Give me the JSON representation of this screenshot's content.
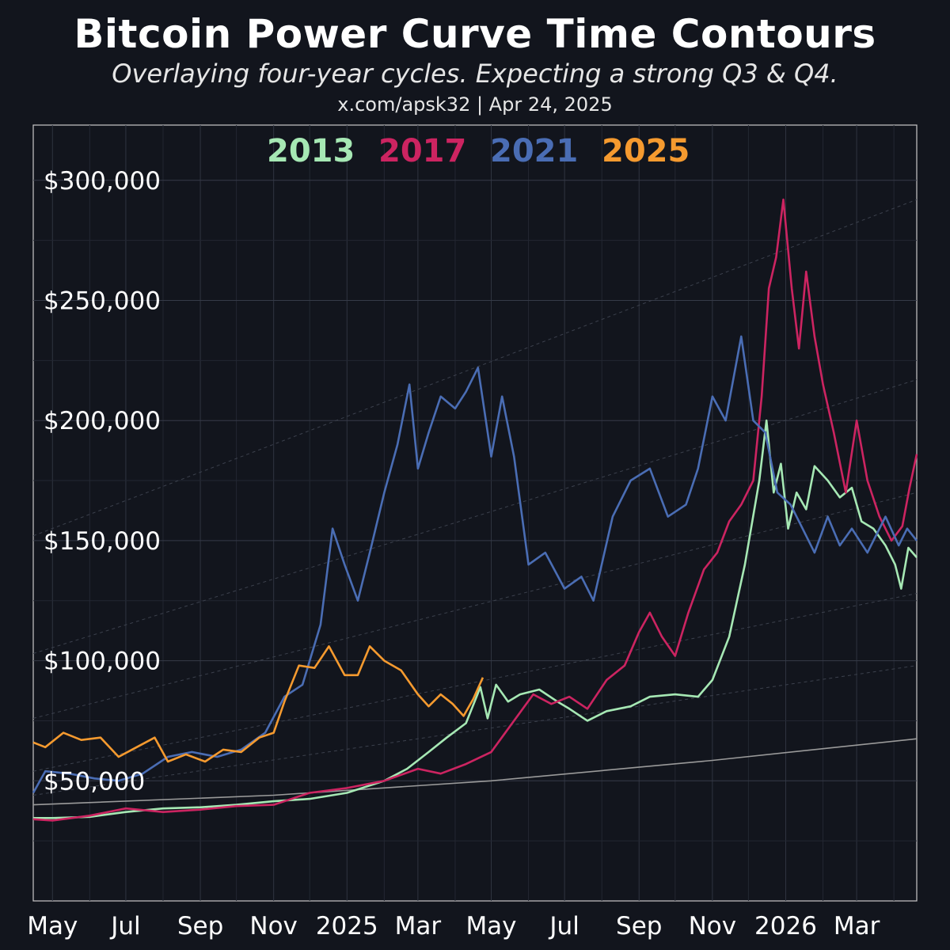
{
  "title": "Bitcoin Power Curve Time Contours",
  "subtitle": "Overlaying four-year cycles. Expecting a strong Q3 & Q4.",
  "credit": "x.com/apsk32 | Apr 24, 2025",
  "chart_data": {
    "type": "line",
    "x_ticks": [
      "May",
      "Jul",
      "Sep",
      "Nov",
      "2025",
      "Mar",
      "May",
      "Jul",
      "Sep",
      "Nov",
      "2026",
      "Mar"
    ],
    "y_ticks": [
      "$50,000",
      "$100,000",
      "$150,000",
      "$200,000",
      "$250,000",
      "$300,000"
    ],
    "ylim": [
      0,
      323000
    ],
    "xlim": [
      "2024-04-15",
      "2026-04-20"
    ],
    "grid": true,
    "legend_position": "top-center",
    "power_curve": {
      "color": "#9a9a9a",
      "points": [
        [
          "2024-04-15",
          40000
        ],
        [
          "2024-11-01",
          44000
        ],
        [
          "2025-05-01",
          50000
        ],
        [
          "2025-11-01",
          58500
        ],
        [
          "2026-04-20",
          67500
        ]
      ]
    },
    "contours": [
      [
        [
          "2024-04-15",
          152000
        ],
        [
          "2026-04-20",
          292000
        ]
      ],
      [
        [
          "2024-04-15",
          103000
        ],
        [
          "2026-04-20",
          217000
        ]
      ],
      [
        [
          "2024-04-15",
          76000
        ],
        [
          "2026-04-20",
          170000
        ]
      ],
      [
        [
          "2024-04-15",
          54000
        ],
        [
          "2026-04-20",
          128000
        ]
      ],
      [
        [
          "2024-04-15",
          44000
        ],
        [
          "2026-04-20",
          98000
        ]
      ]
    ],
    "series": [
      {
        "name": "2013",
        "color": "#a6e8b4",
        "points": [
          [
            "2024-04-15",
            34500
          ],
          [
            "2024-05-01",
            34500
          ],
          [
            "2024-06-01",
            35000
          ],
          [
            "2024-07-01",
            37000
          ],
          [
            "2024-08-01",
            38500
          ],
          [
            "2024-09-01",
            39000
          ],
          [
            "2024-10-01",
            40000
          ],
          [
            "2024-11-01",
            41500
          ],
          [
            "2024-12-01",
            42500
          ],
          [
            "2025-01-01",
            45000
          ],
          [
            "2025-02-01",
            50000
          ],
          [
            "2025-02-20",
            55000
          ],
          [
            "2025-03-10",
            62000
          ],
          [
            "2025-03-25",
            68000
          ],
          [
            "2025-04-10",
            74000
          ],
          [
            "2025-04-22",
            89000
          ],
          [
            "2025-04-28",
            76000
          ],
          [
            "2025-05-05",
            90000
          ],
          [
            "2025-05-15",
            83000
          ],
          [
            "2025-05-25",
            86000
          ],
          [
            "2025-06-10",
            88000
          ],
          [
            "2025-06-25",
            83000
          ],
          [
            "2025-07-05",
            80000
          ],
          [
            "2025-07-20",
            75000
          ],
          [
            "2025-08-05",
            79000
          ],
          [
            "2025-08-25",
            81000
          ],
          [
            "2025-09-10",
            85000
          ],
          [
            "2025-10-01",
            86000
          ],
          [
            "2025-10-20",
            85000
          ],
          [
            "2025-11-01",
            92000
          ],
          [
            "2025-11-15",
            110000
          ],
          [
            "2025-11-28",
            140000
          ],
          [
            "2025-12-10",
            175000
          ],
          [
            "2025-12-16",
            200000
          ],
          [
            "2025-12-22",
            170000
          ],
          [
            "2025-12-28",
            182000
          ],
          [
            "2026-01-03",
            155000
          ],
          [
            "2026-01-10",
            170000
          ],
          [
            "2026-01-18",
            163000
          ],
          [
            "2026-01-25",
            181000
          ],
          [
            "2026-02-05",
            175000
          ],
          [
            "2026-02-15",
            168000
          ],
          [
            "2026-02-25",
            172000
          ],
          [
            "2026-03-05",
            158000
          ],
          [
            "2026-03-15",
            155000
          ],
          [
            "2026-03-25",
            148000
          ],
          [
            "2026-04-02",
            140000
          ],
          [
            "2026-04-07",
            130000
          ],
          [
            "2026-04-13",
            147000
          ],
          [
            "2026-04-20",
            143000
          ]
        ]
      },
      {
        "name": "2017",
        "color": "#cc2461",
        "points": [
          [
            "2024-04-15",
            34000
          ],
          [
            "2024-05-01",
            33500
          ],
          [
            "2024-06-01",
            35500
          ],
          [
            "2024-07-01",
            38500
          ],
          [
            "2024-08-01",
            37000
          ],
          [
            "2024-09-01",
            38000
          ],
          [
            "2024-10-01",
            39500
          ],
          [
            "2024-11-01",
            40000
          ],
          [
            "2024-12-01",
            45000
          ],
          [
            "2025-01-01",
            47000
          ],
          [
            "2025-02-01",
            50000
          ],
          [
            "2025-03-01",
            55000
          ],
          [
            "2025-03-20",
            53000
          ],
          [
            "2025-04-10",
            57000
          ],
          [
            "2025-05-01",
            62000
          ],
          [
            "2025-05-20",
            75000
          ],
          [
            "2025-06-05",
            86000
          ],
          [
            "2025-06-20",
            82000
          ],
          [
            "2025-07-05",
            85000
          ],
          [
            "2025-07-20",
            80000
          ],
          [
            "2025-08-05",
            92000
          ],
          [
            "2025-08-20",
            98000
          ],
          [
            "2025-09-01",
            112000
          ],
          [
            "2025-09-10",
            120000
          ],
          [
            "2025-09-20",
            110000
          ],
          [
            "2025-10-01",
            102000
          ],
          [
            "2025-10-12",
            120000
          ],
          [
            "2025-10-25",
            138000
          ],
          [
            "2025-11-05",
            145000
          ],
          [
            "2025-11-15",
            158000
          ],
          [
            "2025-11-25",
            165000
          ],
          [
            "2025-12-05",
            175000
          ],
          [
            "2025-12-12",
            210000
          ],
          [
            "2025-12-18",
            255000
          ],
          [
            "2025-12-24",
            268000
          ],
          [
            "2025-12-30",
            292000
          ],
          [
            "2026-01-06",
            255000
          ],
          [
            "2026-01-12",
            230000
          ],
          [
            "2026-01-18",
            262000
          ],
          [
            "2026-01-25",
            235000
          ],
          [
            "2026-02-01",
            215000
          ],
          [
            "2026-02-10",
            195000
          ],
          [
            "2026-02-20",
            170000
          ],
          [
            "2026-03-01",
            200000
          ],
          [
            "2026-03-10",
            175000
          ],
          [
            "2026-03-20",
            160000
          ],
          [
            "2026-03-30",
            150000
          ],
          [
            "2026-04-08",
            156000
          ],
          [
            "2026-04-14",
            172000
          ],
          [
            "2026-04-20",
            186000
          ]
        ]
      },
      {
        "name": "2021",
        "color": "#4a6db4",
        "points": [
          [
            "2024-04-15",
            45000
          ],
          [
            "2024-04-25",
            54000
          ],
          [
            "2024-05-15",
            53000
          ],
          [
            "2024-06-05",
            51000
          ],
          [
            "2024-06-25",
            50000
          ],
          [
            "2024-07-15",
            53000
          ],
          [
            "2024-08-05",
            60000
          ],
          [
            "2024-08-25",
            62000
          ],
          [
            "2024-09-15",
            60000
          ],
          [
            "2024-10-05",
            63000
          ],
          [
            "2024-10-25",
            70000
          ],
          [
            "2024-11-10",
            85000
          ],
          [
            "2024-11-25",
            90000
          ],
          [
            "2024-12-10",
            115000
          ],
          [
            "2024-12-20",
            155000
          ],
          [
            "2024-12-30",
            140000
          ],
          [
            "2025-01-10",
            125000
          ],
          [
            "2025-01-20",
            145000
          ],
          [
            "2025-02-01",
            170000
          ],
          [
            "2025-02-12",
            190000
          ],
          [
            "2025-02-22",
            215000
          ],
          [
            "2025-03-01",
            180000
          ],
          [
            "2025-03-10",
            195000
          ],
          [
            "2025-03-20",
            210000
          ],
          [
            "2025-04-01",
            205000
          ],
          [
            "2025-04-10",
            212000
          ],
          [
            "2025-04-20",
            222000
          ],
          [
            "2025-05-01",
            185000
          ],
          [
            "2025-05-10",
            210000
          ],
          [
            "2025-05-20",
            185000
          ],
          [
            "2025-06-01",
            140000
          ],
          [
            "2025-06-15",
            145000
          ],
          [
            "2025-07-01",
            130000
          ],
          [
            "2025-07-15",
            135000
          ],
          [
            "2025-07-25",
            125000
          ],
          [
            "2025-08-10",
            160000
          ],
          [
            "2025-08-25",
            175000
          ],
          [
            "2025-09-10",
            180000
          ],
          [
            "2025-09-25",
            160000
          ],
          [
            "2025-10-10",
            165000
          ],
          [
            "2025-10-20",
            180000
          ],
          [
            "2025-11-01",
            210000
          ],
          [
            "2025-11-12",
            200000
          ],
          [
            "2025-11-25",
            235000
          ],
          [
            "2025-12-05",
            200000
          ],
          [
            "2025-12-15",
            195000
          ],
          [
            "2025-12-25",
            170000
          ],
          [
            "2026-01-05",
            165000
          ],
          [
            "2026-01-15",
            155000
          ],
          [
            "2026-01-25",
            145000
          ],
          [
            "2026-02-05",
            160000
          ],
          [
            "2026-02-15",
            148000
          ],
          [
            "2026-02-25",
            155000
          ],
          [
            "2026-03-10",
            145000
          ],
          [
            "2026-03-25",
            160000
          ],
          [
            "2026-04-05",
            148000
          ],
          [
            "2026-04-12",
            155000
          ],
          [
            "2026-04-20",
            150000
          ]
        ]
      },
      {
        "name": "2025",
        "color": "#f59a2f",
        "points": [
          [
            "2024-04-15",
            66000
          ],
          [
            "2024-04-25",
            64000
          ],
          [
            "2024-05-10",
            70000
          ],
          [
            "2024-05-25",
            67000
          ],
          [
            "2024-06-10",
            68000
          ],
          [
            "2024-06-25",
            60000
          ],
          [
            "2024-07-10",
            64000
          ],
          [
            "2024-07-25",
            68000
          ],
          [
            "2024-08-05",
            58000
          ],
          [
            "2024-08-20",
            61000
          ],
          [
            "2024-09-05",
            58000
          ],
          [
            "2024-09-20",
            63000
          ],
          [
            "2024-10-05",
            62000
          ],
          [
            "2024-10-20",
            68000
          ],
          [
            "2024-11-01",
            70000
          ],
          [
            "2024-11-10",
            83000
          ],
          [
            "2024-11-22",
            98000
          ],
          [
            "2024-12-05",
            97000
          ],
          [
            "2024-12-17",
            106000
          ],
          [
            "2024-12-30",
            94000
          ],
          [
            "2025-01-10",
            94000
          ],
          [
            "2025-01-20",
            106000
          ],
          [
            "2025-02-01",
            100000
          ],
          [
            "2025-02-15",
            96000
          ],
          [
            "2025-03-01",
            86000
          ],
          [
            "2025-03-10",
            81000
          ],
          [
            "2025-03-20",
            86000
          ],
          [
            "2025-03-30",
            82000
          ],
          [
            "2025-04-08",
            77000
          ],
          [
            "2025-04-16",
            84000
          ],
          [
            "2025-04-24",
            93000
          ]
        ]
      }
    ]
  }
}
